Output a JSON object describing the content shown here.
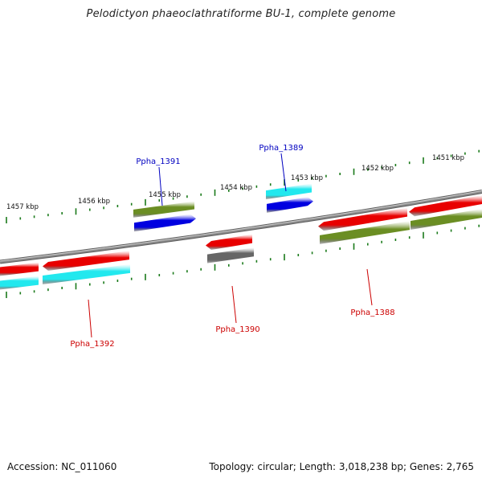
{
  "title": "Pelodictyon phaeoclathratiforme BU-1, complete genome",
  "footer": {
    "accession": "Accession: NC_011060",
    "summary": "Topology: circular; Length: 3,018,238 bp; Genes: 2,765"
  },
  "colors": {
    "backbone": "#8c8c8c",
    "tick": "#1a7a1a",
    "label_forward": "#0000c0",
    "label_reverse": "#cc0000",
    "red": "#e80000",
    "cyan": "#22e8ee",
    "olive": "#6b8e23",
    "blue": "#0000e0",
    "gray": "#666666"
  },
  "scale": {
    "unit": "kbp",
    "labels": [
      "1457 kbp",
      "1456 kbp",
      "1455 kbp",
      "1454 kbp",
      "1453 kbp",
      "1452 kbp",
      "1451 kbp"
    ]
  },
  "gene_labels": [
    {
      "id": "Ppha_1391",
      "text": "Ppha_1391",
      "strand": "forward"
    },
    {
      "id": "Ppha_1389",
      "text": "Ppha_1389",
      "strand": "forward"
    },
    {
      "id": "Ppha_1392",
      "text": "Ppha_1392",
      "strand": "reverse"
    },
    {
      "id": "Ppha_1390",
      "text": "Ppha_1390",
      "strand": "reverse"
    },
    {
      "id": "Ppha_1388",
      "text": "Ppha_1388",
      "strand": "reverse"
    }
  ],
  "features": [
    {
      "id": "f1",
      "color": "red",
      "arrow": "none"
    },
    {
      "id": "f2",
      "color": "cyan",
      "arrow": "none"
    },
    {
      "id": "f3",
      "color": "red",
      "arrow": "left"
    },
    {
      "id": "f4",
      "color": "cyan",
      "arrow": "none"
    },
    {
      "id": "f5",
      "color": "olive",
      "arrow": "none"
    },
    {
      "id": "f6",
      "color": "blue",
      "arrow": "right"
    },
    {
      "id": "f7",
      "color": "red",
      "arrow": "left"
    },
    {
      "id": "f8",
      "color": "gray",
      "arrow": "none"
    },
    {
      "id": "f9",
      "color": "cyan",
      "arrow": "none"
    },
    {
      "id": "f10",
      "color": "blue",
      "arrow": "right"
    },
    {
      "id": "f11",
      "color": "red",
      "arrow": "left"
    },
    {
      "id": "f12",
      "color": "olive",
      "arrow": "none"
    },
    {
      "id": "f13",
      "color": "red",
      "arrow": "left"
    },
    {
      "id": "f14",
      "color": "olive",
      "arrow": "none"
    }
  ]
}
